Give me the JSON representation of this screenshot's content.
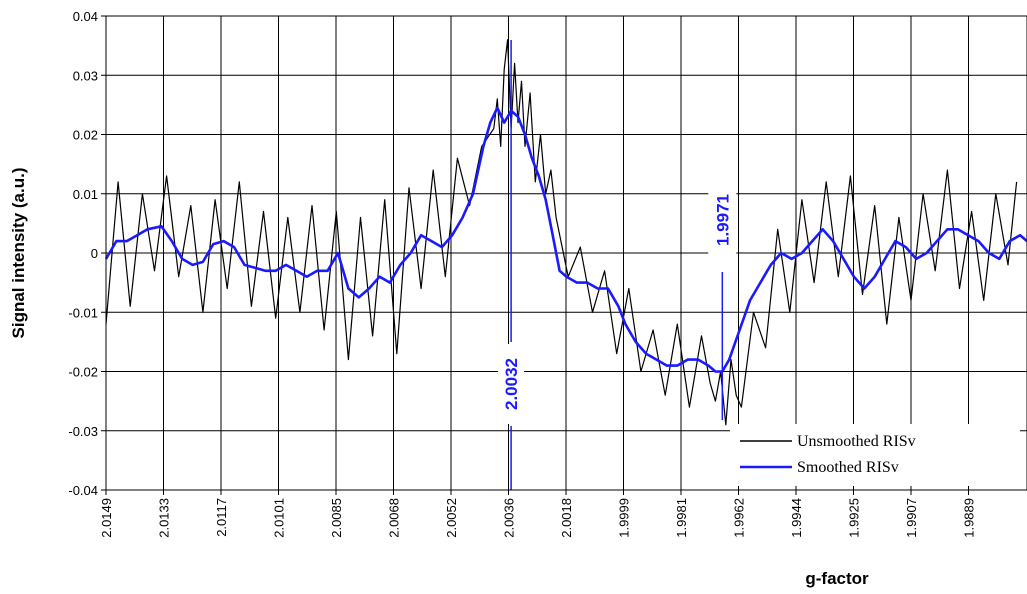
{
  "chart_data": {
    "type": "line",
    "ylabel": "Signal intensity (a.u.)",
    "xlabel": "g-factor",
    "ylim": [
      -0.04,
      0.04
    ],
    "y_ticks": [
      "0.04",
      "0.03",
      "0.02",
      "0.01",
      "0",
      "-0.01",
      "-0.02",
      "-0.03",
      "-0.04"
    ],
    "x_tick_labels": [
      "2.0149",
      "2.0133",
      "2.0117",
      "2.0101",
      "2.0085",
      "2.0068",
      "2.0052",
      "2.0036",
      "2.0018",
      "1.9999",
      "1.9981",
      "1.9962",
      "1.9944",
      "1.9925",
      "1.9907",
      "1.9889"
    ],
    "xlim": [
      2.0149,
      1.9883
    ],
    "grid": true,
    "legend_position": "bottom-right",
    "series": [
      {
        "name": "Unsmoothed RISv",
        "color": "#000000",
        "x": [
          2.0149,
          2.01455,
          2.0142,
          2.01385,
          2.0135,
          2.01315,
          2.0128,
          2.01245,
          2.0121,
          2.01175,
          2.0114,
          2.01105,
          2.0107,
          2.01035,
          2.01,
          2.00965,
          2.0093,
          2.00895,
          2.0086,
          2.00825,
          2.0079,
          2.00755,
          2.0072,
          2.00685,
          2.0065,
          2.00615,
          2.0058,
          2.00545,
          2.0051,
          2.00475,
          2.0044,
          2.00405,
          2.0037,
          2.0036,
          2.0035,
          2.0034,
          2.0033,
          2.0032,
          2.0031,
          2.003,
          2.0029,
          2.0028,
          2.00265,
          2.0025,
          2.00235,
          2.0022,
          2.00205,
          2.0019,
          2.00155,
          2.0012,
          2.00085,
          2.0005,
          2.00015,
          1.9998,
          1.99945,
          1.9991,
          1.99875,
          1.9984,
          1.99805,
          1.9977,
          1.99745,
          1.9973,
          1.99715,
          1.997,
          1.99685,
          1.9967,
          1.99655,
          1.9962,
          1.99585,
          1.9955,
          1.99515,
          1.9948,
          1.99445,
          1.9941,
          1.99375,
          1.9934,
          1.99305,
          1.9927,
          1.99235,
          1.992,
          1.99165,
          1.9913,
          1.99095,
          1.9906,
          1.99025,
          1.9899,
          1.98955,
          1.9892,
          1.98885,
          1.9886
        ],
        "y": [
          -0.012,
          0.012,
          -0.009,
          0.01,
          -0.003,
          0.013,
          -0.004,
          0.008,
          -0.01,
          0.009,
          -0.006,
          0.012,
          -0.009,
          0.007,
          -0.011,
          0.006,
          -0.01,
          0.008,
          -0.013,
          0.007,
          -0.018,
          0.006,
          -0.014,
          0.009,
          -0.017,
          0.011,
          -0.006,
          0.014,
          -0.004,
          0.016,
          0.008,
          0.018,
          0.021,
          0.026,
          0.018,
          0.031,
          0.036,
          0.021,
          0.032,
          0.022,
          0.029,
          0.018,
          0.027,
          0.012,
          0.02,
          0.01,
          0.014,
          0.006,
          -0.004,
          0.001,
          -0.01,
          -0.003,
          -0.017,
          -0.006,
          -0.02,
          -0.013,
          -0.024,
          -0.012,
          -0.026,
          -0.014,
          -0.022,
          -0.025,
          -0.02,
          -0.029,
          -0.018,
          -0.024,
          -0.026,
          -0.01,
          -0.016,
          0.004,
          -0.01,
          0.009,
          -0.005,
          0.012,
          -0.004,
          0.013,
          -0.007,
          0.008,
          -0.012,
          0.006,
          -0.008,
          0.01,
          -0.003,
          0.014,
          -0.006,
          0.007,
          -0.008,
          0.01,
          -0.002,
          0.012
        ]
      },
      {
        "name": "Smoothed RISv",
        "color": "#1a1aff",
        "x": [
          2.0149,
          2.0146,
          2.0143,
          2.014,
          2.0137,
          2.0133,
          2.013,
          2.0127,
          2.0124,
          2.0121,
          2.0118,
          2.0115,
          2.0112,
          2.0109,
          2.0106,
          2.0103,
          2.01,
          2.0097,
          2.0094,
          2.0091,
          2.0088,
          2.0085,
          2.0082,
          2.0079,
          2.0076,
          2.0073,
          2.007,
          2.0067,
          2.0064,
          2.0061,
          2.0058,
          2.0055,
          2.0052,
          2.0049,
          2.0046,
          2.0043,
          2.004,
          2.0038,
          2.0036,
          2.0034,
          2.0032,
          2.003,
          2.0028,
          2.0026,
          2.0024,
          2.0022,
          2.002,
          2.0018,
          2.0016,
          2.0013,
          2.001,
          2.0007,
          2.0004,
          2.0001,
          1.9999,
          1.9996,
          1.9993,
          1.999,
          1.9987,
          1.9984,
          1.9981,
          1.9978,
          1.9975,
          1.9973,
          1.9971,
          1.9969,
          1.9966,
          1.9963,
          1.996,
          1.9957,
          1.9954,
          1.9951,
          1.9948,
          1.9945,
          1.9942,
          1.9939,
          1.9936,
          1.9933,
          1.993,
          1.9927,
          1.9924,
          1.9921,
          1.9918,
          1.9915,
          1.9912,
          1.9909,
          1.9906,
          1.9903,
          1.99,
          1.9897,
          1.9894,
          1.9891,
          1.9888,
          1.9885,
          1.9883
        ],
        "y": [
          -0.001,
          0.002,
          0.002,
          0.003,
          0.004,
          0.0045,
          0.002,
          -0.001,
          -0.002,
          -0.0015,
          0.0015,
          0.002,
          0.001,
          -0.002,
          -0.0025,
          -0.003,
          -0.003,
          -0.002,
          -0.003,
          -0.004,
          -0.003,
          -0.003,
          0.0,
          -0.006,
          -0.0075,
          -0.006,
          -0.004,
          -0.005,
          -0.002,
          0.0,
          0.003,
          0.002,
          0.001,
          0.003,
          0.006,
          0.01,
          0.018,
          0.022,
          0.0245,
          0.022,
          0.024,
          0.023,
          0.02,
          0.016,
          0.013,
          0.009,
          0.003,
          -0.003,
          -0.004,
          -0.005,
          -0.005,
          -0.006,
          -0.006,
          -0.009,
          -0.012,
          -0.015,
          -0.017,
          -0.018,
          -0.019,
          -0.019,
          -0.018,
          -0.018,
          -0.019,
          -0.02,
          -0.02,
          -0.018,
          -0.013,
          -0.008,
          -0.005,
          -0.002,
          0.0,
          -0.001,
          0.0,
          0.002,
          0.004,
          0.002,
          -0.001,
          -0.004,
          -0.006,
          -0.004,
          -0.001,
          0.002,
          0.001,
          -0.001,
          0.0,
          0.002,
          0.004,
          0.004,
          0.003,
          0.002,
          0.0,
          -0.001,
          0.002,
          0.003,
          0.002
        ]
      }
    ],
    "annotations": [
      {
        "label": "2.0032",
        "x": 2.0032
      },
      {
        "label": "1.9971",
        "x": 1.9971
      }
    ]
  }
}
